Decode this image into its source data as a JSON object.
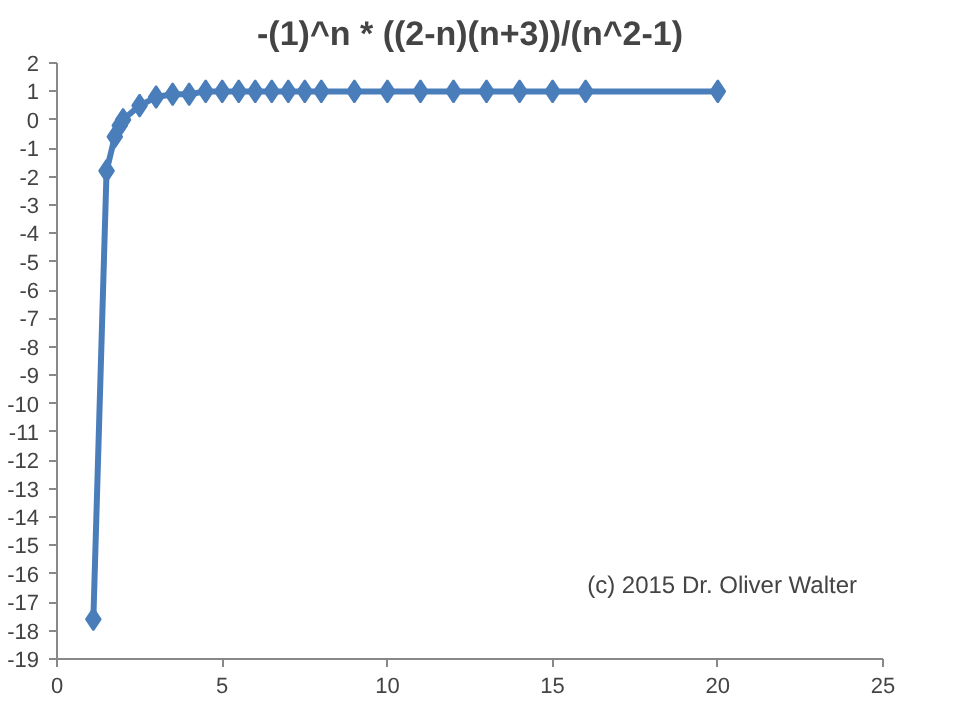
{
  "chart_data": {
    "type": "line",
    "title": "-(1)^n * ((2-n)(n+3))/(n^2-1)",
    "x": [
      1.1,
      1.5,
      1.75,
      1.9,
      2,
      2.5,
      3,
      3.5,
      4,
      4.5,
      5,
      5.5,
      6,
      6.5,
      7,
      7.5,
      8,
      9,
      10,
      11,
      12,
      13,
      14,
      15,
      16,
      20
    ],
    "series": [
      {
        "color": "#4a7ebb",
        "values": [
          -17.6,
          -1.8,
          -0.6,
          -0.2,
          0,
          0.5,
          0.8,
          0.9,
          0.9,
          1.0,
          1.0,
          1.0,
          1.0,
          1.0,
          1.0,
          1.0,
          1.0,
          1.0,
          1.0,
          1.0,
          1.0,
          1.0,
          1.0,
          1.0,
          1.0,
          1.0
        ]
      }
    ],
    "xlim": [
      0,
      25
    ],
    "xticks": [
      0,
      5,
      10,
      15,
      20,
      25
    ],
    "ylim": [
      -19,
      2
    ],
    "yticks": [
      -19,
      -18,
      -17,
      -16,
      -15,
      -14,
      -13,
      -12,
      -11,
      -10,
      -9,
      -8,
      -7,
      -6,
      -5,
      -4,
      -3,
      -2,
      -1,
      0,
      1,
      2
    ],
    "marker": "diamond",
    "line_style": "solid",
    "grid": false,
    "annotations": [
      "(c) 2015 Dr. Oliver Walter"
    ]
  }
}
